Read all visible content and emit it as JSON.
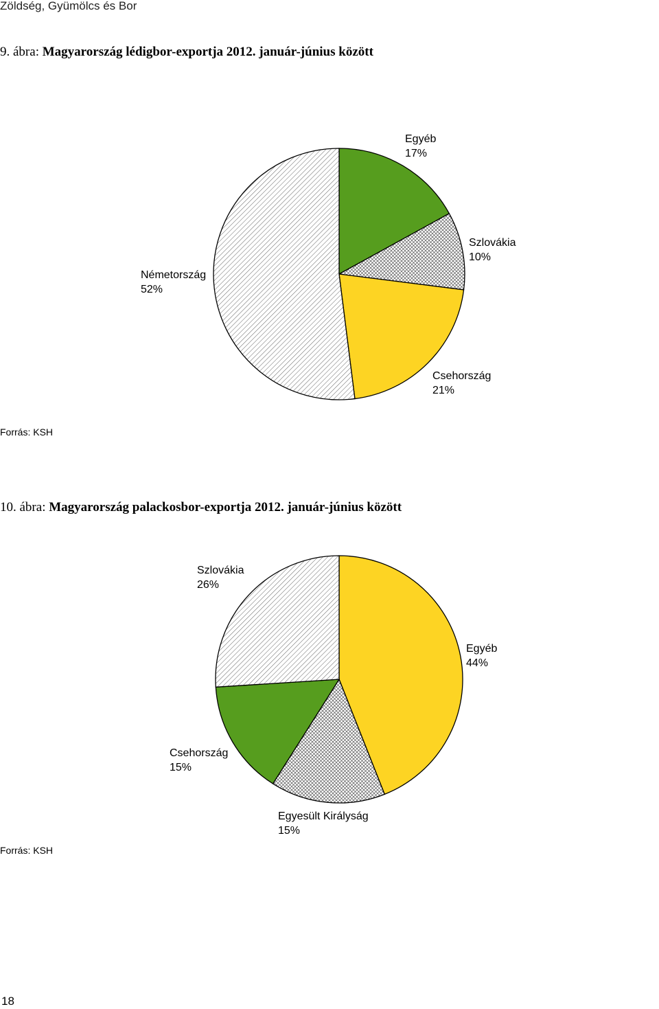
{
  "header": {
    "title": "Zöldség, Gyümölcs és Bor"
  },
  "figure1": {
    "number": "9. ábra:",
    "title": "Magyarország lédigbor-exportja 2012. január-június között",
    "source": "Forrás: KSH"
  },
  "figure2": {
    "number": "10. ábra:",
    "title": "Magyarország palackosbor-exportja 2012. január-június között",
    "source": "Forrás: KSH"
  },
  "page_number": "18",
  "chart_data": [
    {
      "type": "pie",
      "title": "Magyarország lédigbor-exportja 2012. január-június között",
      "categories": [
        "Egyéb",
        "Szlovákia",
        "Csehország",
        "Németország"
      ],
      "values": [
        17,
        10,
        21,
        52
      ],
      "value_labels": [
        "17%",
        "10%",
        "21%",
        "52%"
      ],
      "colors": [
        "#569D1E",
        "crosshatch",
        "#FDD423",
        "diagonal-hatch"
      ],
      "start_angle": "12 o'clock, clockwise",
      "legend": "none (direct labels)"
    },
    {
      "type": "pie",
      "title": "Magyarország palackosbor-exportja 2012. január-június között",
      "categories": [
        "Egyéb",
        "Egyesült Királyság",
        "Csehország",
        "Szlovákia"
      ],
      "values": [
        44,
        15,
        15,
        26
      ],
      "value_labels": [
        "44%",
        "15%",
        "15%",
        "26%"
      ],
      "colors": [
        "#FDD423",
        "crosshatch",
        "#569D1E",
        "diagonal-hatch"
      ],
      "start_angle": "12 o'clock, clockwise",
      "legend": "none (direct labels)"
    }
  ]
}
